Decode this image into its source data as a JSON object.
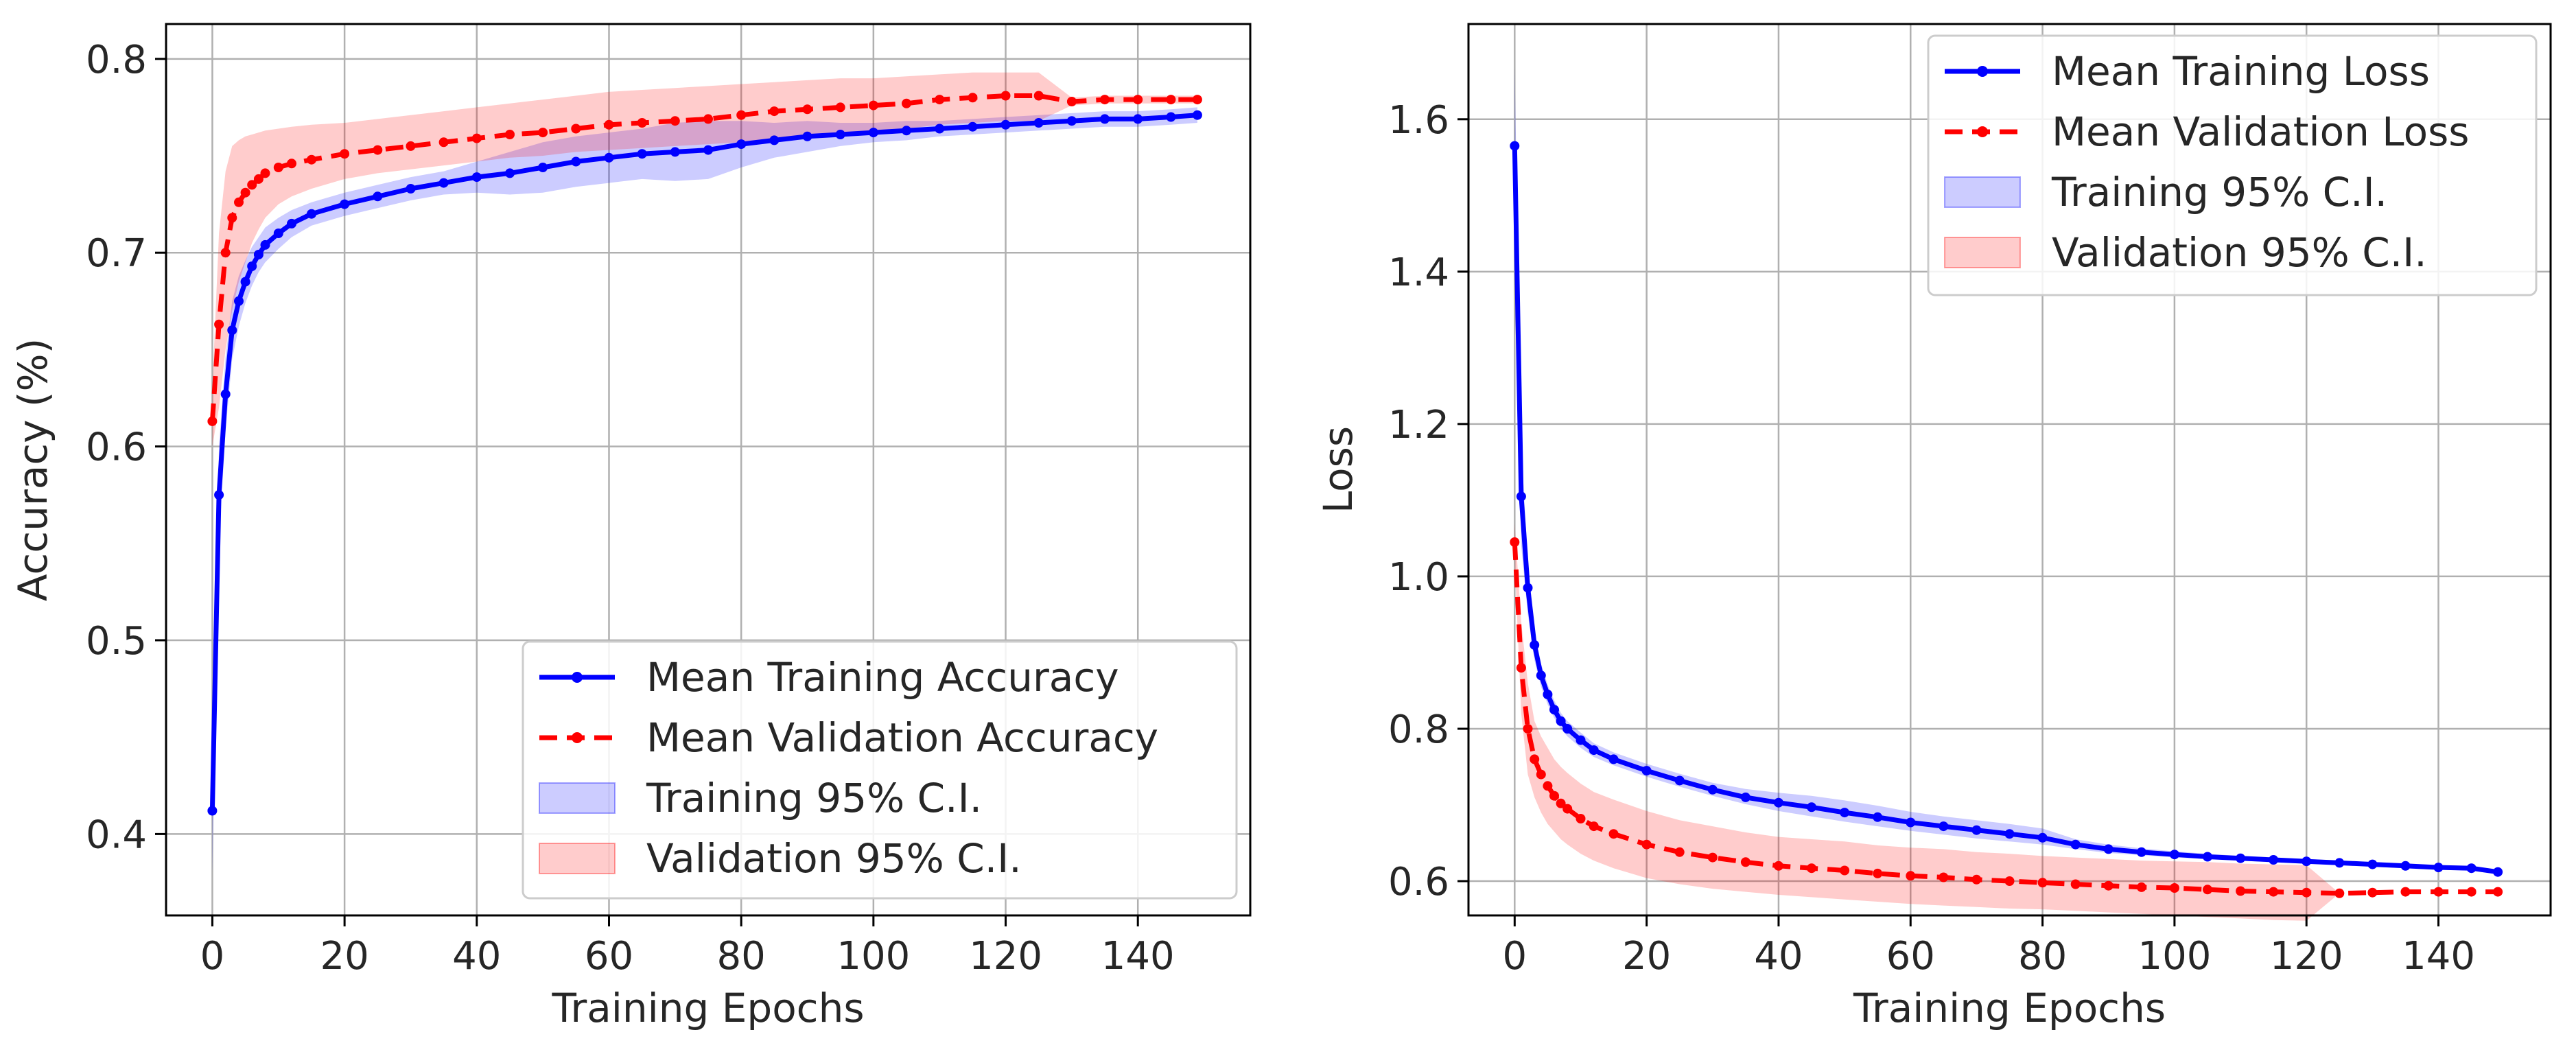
{
  "chart_data": [
    {
      "type": "line",
      "xlabel": "Training Epochs",
      "ylabel": "Accuracy (%)",
      "xlim": [
        -7,
        157
      ],
      "ylim": [
        0.358,
        0.818
      ],
      "x_ticks": [
        0,
        20,
        40,
        60,
        80,
        100,
        120,
        140
      ],
      "x_tick_labels": [
        "0",
        "20",
        "40",
        "60",
        "80",
        "100",
        "120",
        "140"
      ],
      "y_ticks": [
        0.4,
        0.5,
        0.6,
        0.7,
        0.8
      ],
      "y_tick_labels": [
        "0.4",
        "0.5",
        "0.6",
        "0.7",
        "0.8"
      ],
      "grid": true,
      "legend_position": "lower-right",
      "x": [
        0,
        1,
        2,
        3,
        4,
        5,
        6,
        7,
        8,
        10,
        12,
        15,
        20,
        25,
        30,
        35,
        40,
        45,
        50,
        55,
        60,
        65,
        70,
        75,
        80,
        85,
        90,
        95,
        100,
        105,
        110,
        115,
        120,
        125,
        130,
        135,
        140,
        145,
        149
      ],
      "series": [
        {
          "name": "Mean Training Accuracy",
          "color": "#0000ff",
          "style": "solid",
          "values": [
            0.412,
            0.575,
            0.627,
            0.66,
            0.675,
            0.685,
            0.693,
            0.699,
            0.704,
            0.71,
            0.715,
            0.72,
            0.725,
            0.729,
            0.733,
            0.736,
            0.739,
            0.741,
            0.744,
            0.747,
            0.749,
            0.751,
            0.752,
            0.753,
            0.756,
            0.758,
            0.76,
            0.761,
            0.762,
            0.763,
            0.764,
            0.765,
            0.766,
            0.767,
            0.768,
            0.769,
            0.769,
            0.77,
            0.771
          ],
          "ci_lower": [
            0.38,
            0.55,
            0.608,
            0.645,
            0.662,
            0.674,
            0.683,
            0.69,
            0.695,
            0.702,
            0.708,
            0.714,
            0.719,
            0.723,
            0.727,
            0.73,
            0.731,
            0.73,
            0.731,
            0.734,
            0.736,
            0.738,
            0.737,
            0.738,
            0.744,
            0.749,
            0.752,
            0.755,
            0.757,
            0.758,
            0.76,
            0.761,
            0.762,
            0.763,
            0.764,
            0.765,
            0.765,
            0.766,
            0.767
          ],
          "ci_upper": [
            0.44,
            0.6,
            0.646,
            0.675,
            0.688,
            0.696,
            0.703,
            0.708,
            0.713,
            0.718,
            0.722,
            0.726,
            0.731,
            0.735,
            0.739,
            0.742,
            0.747,
            0.752,
            0.757,
            0.76,
            0.762,
            0.764,
            0.767,
            0.768,
            0.768,
            0.767,
            0.768,
            0.767,
            0.767,
            0.768,
            0.768,
            0.769,
            0.77,
            0.771,
            0.772,
            0.773,
            0.773,
            0.774,
            0.775
          ]
        },
        {
          "name": "Mean Validation Accuracy",
          "color": "#ff0000",
          "style": "dashed",
          "values": [
            0.613,
            0.663,
            0.7,
            0.718,
            0.726,
            0.731,
            0.735,
            0.738,
            0.741,
            0.744,
            0.746,
            0.748,
            0.751,
            0.753,
            0.755,
            0.757,
            0.759,
            0.761,
            0.762,
            0.764,
            0.766,
            0.767,
            0.768,
            0.769,
            0.771,
            0.773,
            0.774,
            0.775,
            0.776,
            0.777,
            0.779,
            0.78,
            0.781,
            0.781,
            0.778,
            0.779,
            0.779,
            0.779,
            0.779
          ],
          "ci_lower": [
            0.6,
            0.62,
            0.65,
            0.67,
            0.685,
            0.695,
            0.705,
            0.712,
            0.718,
            0.725,
            0.729,
            0.733,
            0.738,
            0.741,
            0.743,
            0.745,
            0.747,
            0.749,
            0.75,
            0.752,
            0.753,
            0.754,
            0.755,
            0.756,
            0.757,
            0.758,
            0.759,
            0.76,
            0.762,
            0.764,
            0.766,
            0.767,
            0.768,
            0.768,
            0.776,
            0.777,
            0.777,
            0.777,
            0.777
          ],
          "ci_upper": [
            0.63,
            0.71,
            0.742,
            0.755,
            0.758,
            0.76,
            0.761,
            0.762,
            0.763,
            0.764,
            0.765,
            0.766,
            0.767,
            0.769,
            0.771,
            0.773,
            0.775,
            0.777,
            0.779,
            0.781,
            0.783,
            0.784,
            0.785,
            0.786,
            0.787,
            0.788,
            0.789,
            0.79,
            0.79,
            0.791,
            0.792,
            0.793,
            0.793,
            0.793,
            0.78,
            0.781,
            0.781,
            0.781,
            0.781
          ]
        }
      ],
      "legend": [
        {
          "label": "Mean Training Accuracy",
          "kind": "line",
          "color": "#0000ff",
          "style": "solid"
        },
        {
          "label": "Mean Validation Accuracy",
          "kind": "line",
          "color": "#ff0000",
          "style": "dashed"
        },
        {
          "label": "Training 95% C.I.",
          "kind": "band",
          "color": "#0000ff"
        },
        {
          "label": "Validation 95% C.I.",
          "kind": "band",
          "color": "#ff0000"
        }
      ]
    },
    {
      "type": "line",
      "xlabel": "Training Epochs",
      "ylabel": "Loss",
      "xlim": [
        -7,
        157
      ],
      "ylim": [
        0.555,
        1.725
      ],
      "x_ticks": [
        0,
        20,
        40,
        60,
        80,
        100,
        120,
        140
      ],
      "x_tick_labels": [
        "0",
        "20",
        "40",
        "60",
        "80",
        "100",
        "120",
        "140"
      ],
      "y_ticks": [
        0.6,
        0.8,
        1.0,
        1.2,
        1.4,
        1.6
      ],
      "y_tick_labels": [
        "0.6",
        "0.8",
        "1.0",
        "1.2",
        "1.4",
        "1.6"
      ],
      "grid": true,
      "legend_position": "upper-right",
      "x": [
        0,
        1,
        2,
        3,
        4,
        5,
        6,
        7,
        8,
        10,
        12,
        15,
        20,
        25,
        30,
        35,
        40,
        45,
        50,
        55,
        60,
        65,
        70,
        75,
        80,
        85,
        90,
        95,
        100,
        105,
        110,
        115,
        120,
        125,
        130,
        135,
        140,
        145,
        149
      ],
      "series": [
        {
          "name": "Mean Training Loss",
          "color": "#0000ff",
          "style": "solid",
          "values": [
            1.565,
            1.105,
            0.985,
            0.91,
            0.87,
            0.845,
            0.825,
            0.81,
            0.8,
            0.785,
            0.772,
            0.76,
            0.745,
            0.732,
            0.72,
            0.71,
            0.703,
            0.697,
            0.69,
            0.684,
            0.677,
            0.672,
            0.667,
            0.662,
            0.657,
            0.648,
            0.642,
            0.638,
            0.635,
            0.632,
            0.63,
            0.628,
            0.626,
            0.624,
            0.622,
            0.62,
            0.618,
            0.617,
            0.612
          ],
          "ci_lower": [
            1.46,
            1.04,
            0.95,
            0.89,
            0.855,
            0.832,
            0.814,
            0.8,
            0.79,
            0.775,
            0.763,
            0.752,
            0.737,
            0.724,
            0.712,
            0.701,
            0.692,
            0.685,
            0.678,
            0.672,
            0.666,
            0.661,
            0.656,
            0.652,
            0.648,
            0.642,
            0.637,
            0.634,
            0.631,
            0.629,
            0.627,
            0.625,
            0.623,
            0.621,
            0.619,
            0.617,
            0.615,
            0.614,
            0.609
          ],
          "ci_upper": [
            1.67,
            1.17,
            1.02,
            0.93,
            0.885,
            0.858,
            0.837,
            0.821,
            0.81,
            0.795,
            0.781,
            0.769,
            0.754,
            0.741,
            0.729,
            0.721,
            0.716,
            0.712,
            0.706,
            0.699,
            0.691,
            0.685,
            0.68,
            0.675,
            0.669,
            0.655,
            0.648,
            0.643,
            0.639,
            0.636,
            0.633,
            0.631,
            0.629,
            0.627,
            0.625,
            0.623,
            0.621,
            0.62,
            0.615
          ]
        },
        {
          "name": "Mean Validation Loss",
          "color": "#ff0000",
          "style": "dashed",
          "values": [
            1.045,
            0.88,
            0.8,
            0.76,
            0.74,
            0.725,
            0.712,
            0.702,
            0.695,
            0.682,
            0.672,
            0.662,
            0.648,
            0.638,
            0.631,
            0.625,
            0.62,
            0.617,
            0.614,
            0.61,
            0.607,
            0.605,
            0.602,
            0.6,
            0.598,
            0.596,
            0.594,
            0.592,
            0.591,
            0.589,
            0.587,
            0.586,
            0.585,
            0.584,
            0.585,
            0.586,
            0.586,
            0.586,
            0.586
          ],
          "ci_lower": [
            1.02,
            0.82,
            0.74,
            0.71,
            0.69,
            0.675,
            0.665,
            0.655,
            0.648,
            0.636,
            0.627,
            0.617,
            0.604,
            0.596,
            0.59,
            0.586,
            0.582,
            0.579,
            0.576,
            0.573,
            0.57,
            0.568,
            0.566,
            0.564,
            0.563,
            0.561,
            0.559,
            0.557,
            0.555,
            0.553,
            0.551,
            0.549,
            0.548,
            0.584,
            0.585,
            0.586,
            0.586,
            0.586,
            0.586
          ],
          "ci_upper": [
            1.07,
            0.94,
            0.86,
            0.81,
            0.79,
            0.775,
            0.76,
            0.75,
            0.742,
            0.728,
            0.717,
            0.707,
            0.692,
            0.68,
            0.672,
            0.664,
            0.658,
            0.655,
            0.652,
            0.647,
            0.644,
            0.642,
            0.638,
            0.636,
            0.633,
            0.631,
            0.629,
            0.627,
            0.626,
            0.625,
            0.623,
            0.622,
            0.621,
            0.584,
            0.585,
            0.586,
            0.586,
            0.586,
            0.586
          ]
        }
      ],
      "legend": [
        {
          "label": "Mean Training Loss",
          "kind": "line",
          "color": "#0000ff",
          "style": "solid"
        },
        {
          "label": "Mean Validation Loss",
          "kind": "line",
          "color": "#ff0000",
          "style": "dashed"
        },
        {
          "label": "Training 95% C.I.",
          "kind": "band",
          "color": "#0000ff"
        },
        {
          "label": "Validation 95% C.I.",
          "kind": "band",
          "color": "#ff0000"
        }
      ]
    }
  ]
}
